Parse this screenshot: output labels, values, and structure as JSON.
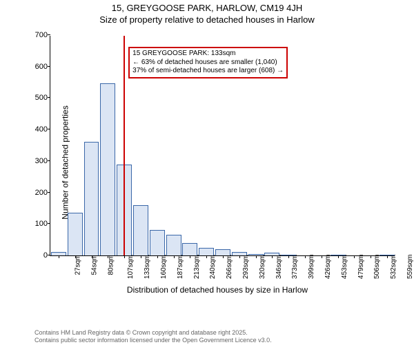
{
  "title_line1": "15, GREYGOOSE PARK, HARLOW, CM19 4JH",
  "title_line2": "Size of property relative to detached houses in Harlow",
  "y_label": "Number of detached properties",
  "x_label": "Distribution of detached houses by size in Harlow",
  "footer_line1": "Contains HM Land Registry data © Crown copyright and database right 2025.",
  "footer_line2": "Contains public sector information licensed under the Open Government Licence v3.0.",
  "chart": {
    "type": "histogram",
    "ylim": [
      0,
      700
    ],
    "ytick_step": 100,
    "background_color": "#ffffff",
    "axis_color": "#000000",
    "bar_fill": "#dbe5f4",
    "bar_border": "#3a67a8",
    "marker_color": "#cc0000",
    "infobox_border": "#cc0000",
    "categories": [
      "27sqm",
      "54sqm",
      "80sqm",
      "107sqm",
      "133sqm",
      "160sqm",
      "187sqm",
      "213sqm",
      "240sqm",
      "266sqm",
      "293sqm",
      "320sqm",
      "346sqm",
      "373sqm",
      "399sqm",
      "426sqm",
      "453sqm",
      "479sqm",
      "506sqm",
      "532sqm",
      "559sqm"
    ],
    "values": [
      12,
      135,
      362,
      548,
      288,
      160,
      80,
      65,
      40,
      25,
      20,
      10,
      5,
      8,
      3,
      0,
      0,
      2,
      0,
      0,
      2
    ],
    "marker_index": 4,
    "infobox": {
      "line1": "15 GREYGOOSE PARK: 133sqm",
      "line2": "← 63% of detached houses are smaller (1,040)",
      "line3": "37% of semi-detached houses are larger (608) →"
    }
  }
}
